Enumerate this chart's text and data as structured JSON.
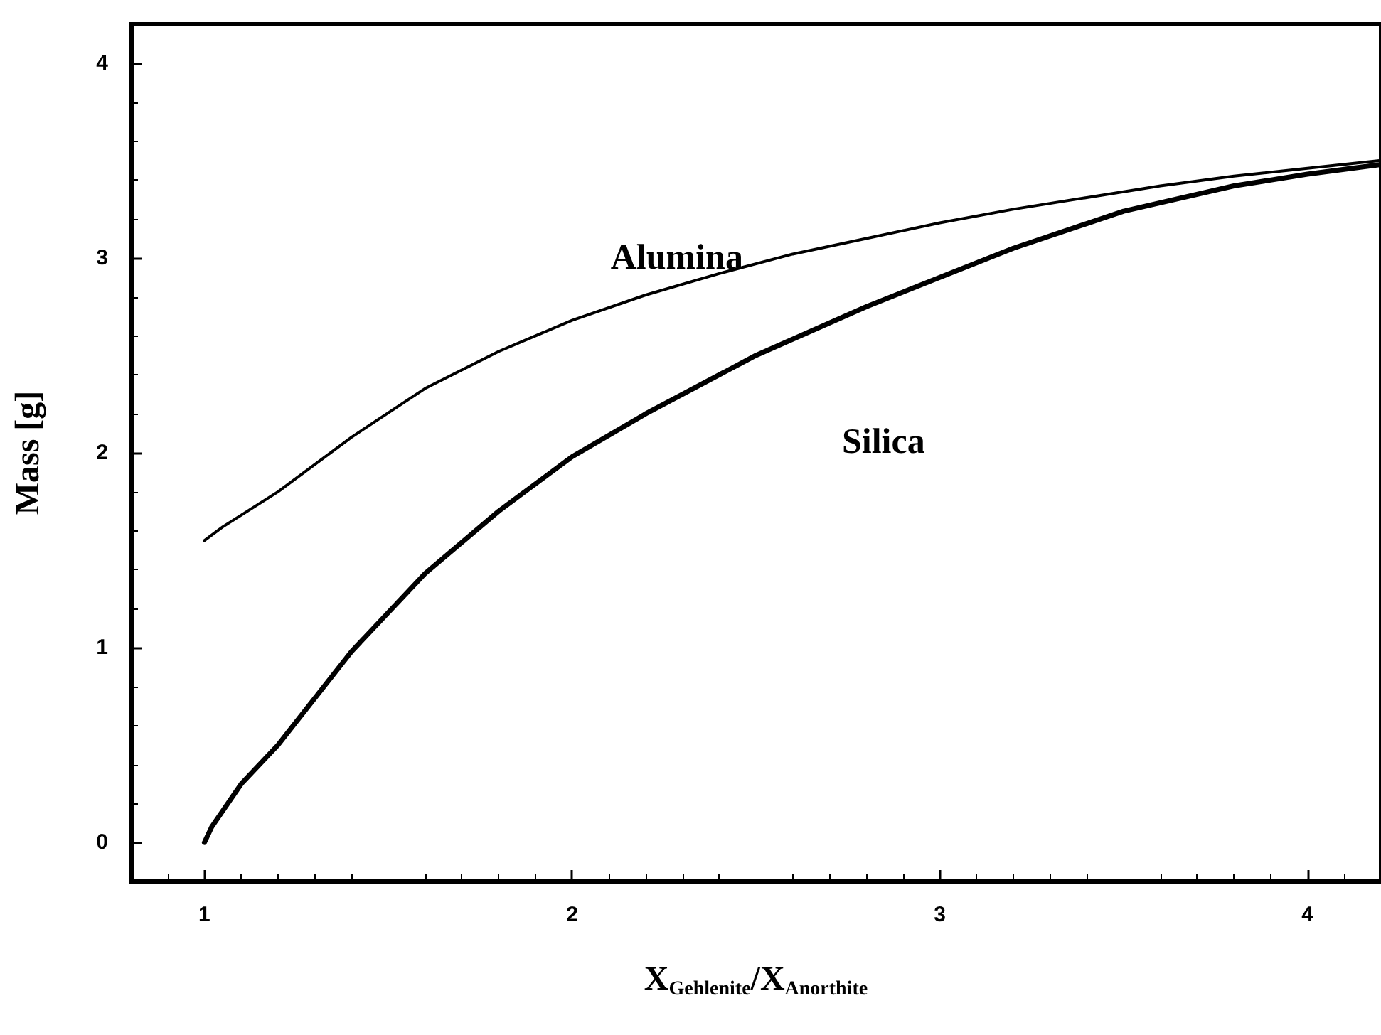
{
  "chart_data": {
    "type": "line",
    "xlabel": "X$_{Gehlenite}$/X$_{Anorthite}$",
    "ylabel": "Mass [g]",
    "xlim": [
      0.8,
      4.2
    ],
    "ylim": [
      -0.2,
      4.2
    ],
    "xticks": [
      1,
      2,
      3,
      4
    ],
    "yticks": [
      0,
      1,
      2,
      3,
      4
    ],
    "grid": false,
    "marker": "none",
    "line_style": "solid",
    "series": [
      {
        "name": "Alumina",
        "color": "#000000",
        "x": [
          1,
          1.05,
          1.2,
          1.4,
          1.6,
          1.8,
          2.0,
          2.2,
          2.4,
          2.6,
          2.8,
          3.0,
          3.2,
          3.4,
          3.6,
          3.8,
          4.0,
          4.2
        ],
        "values": [
          1.55,
          1.62,
          1.8,
          2.08,
          2.33,
          2.52,
          2.68,
          2.81,
          2.92,
          3.02,
          3.1,
          3.18,
          3.25,
          3.31,
          3.37,
          3.42,
          3.46,
          3.5
        ]
      },
      {
        "name": "Silica",
        "color": "#000000",
        "x": [
          1,
          1.02,
          1.1,
          1.2,
          1.4,
          1.6,
          1.8,
          2.0,
          2.2,
          2.5,
          2.8,
          3.0,
          3.2,
          3.5,
          3.8,
          4.0,
          4.2
        ],
        "values": [
          0,
          0.08,
          0.3,
          0.5,
          0.98,
          1.38,
          1.7,
          1.98,
          2.2,
          2.5,
          2.75,
          2.9,
          3.05,
          3.24,
          3.37,
          3.43,
          3.48
        ]
      }
    ]
  }
}
